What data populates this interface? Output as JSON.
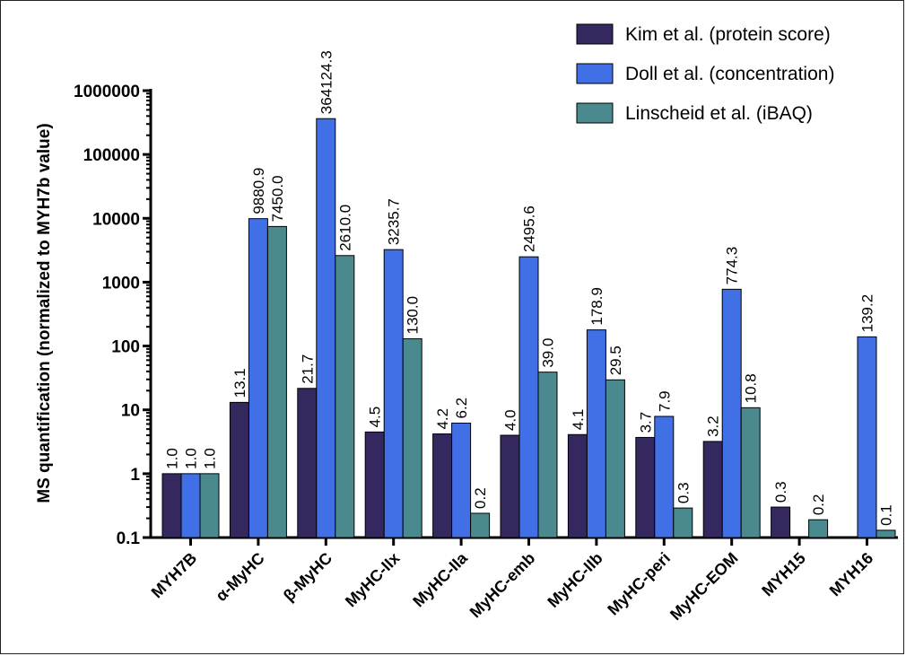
{
  "chart_data": {
    "type": "bar",
    "title": "",
    "xlabel": "",
    "ylabel": "MS quantification (normalized to MYH7b value)",
    "yscale": "log",
    "ylim": [
      0.1,
      1000000
    ],
    "yticks": [
      "0.1",
      "1",
      "10",
      "100",
      "1000",
      "10000",
      "100000",
      "1000000"
    ],
    "legend_position": "top-right",
    "grid": false,
    "categories": [
      "MYH7B",
      "α-MyHC",
      "β-MyHC",
      "MyHC-IIx",
      "MyHC-IIa",
      "MyHC-emb",
      "MyHC-IIb",
      "MyHC-peri",
      "MyHC-EOM",
      "MYH15",
      "MYH16"
    ],
    "series": [
      {
        "name": "Kim et al. (protein score)",
        "color": "#35285f",
        "values": [
          1.0,
          13.1,
          21.7,
          4.5,
          4.2,
          4.0,
          4.1,
          3.7,
          3.2,
          0.3,
          null
        ],
        "labels": [
          "1.0",
          "13.1",
          "21.7",
          "4.5",
          "4.2",
          "4.0",
          "4.1",
          "3.7",
          "3.2",
          "0.3",
          ""
        ]
      },
      {
        "name": "Doll et al. (concentration)",
        "color": "#4170e6",
        "values": [
          1.0,
          9880.9,
          364124.3,
          3235.7,
          6.2,
          2495.6,
          178.9,
          7.9,
          774.3,
          null,
          139.2
        ],
        "labels": [
          "1.0",
          "9880.9",
          "364124.3",
          "3235.7",
          "6.2",
          "2495.6",
          "178.9",
          "7.9",
          "774.3",
          "",
          "139.2"
        ]
      },
      {
        "name": "Linscheid et al. (iBAQ)",
        "color": "#4a8a8f",
        "values": [
          1.0,
          7450.0,
          2610.0,
          130.0,
          0.24,
          39.0,
          29.5,
          0.29,
          10.8,
          0.19,
          0.13
        ],
        "labels": [
          "1.0",
          "7450.0",
          "2610.0",
          "130.0",
          "0.2",
          "39.0",
          "29.5",
          "0.3",
          "10.8",
          "0.2",
          "0.1"
        ]
      }
    ]
  }
}
